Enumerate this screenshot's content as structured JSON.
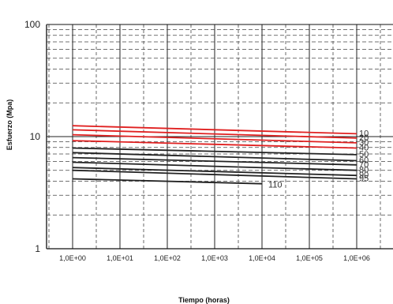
{
  "chart_data": {
    "type": "line",
    "title": "",
    "xlabel": "Tiempo (horas)",
    "ylabel": "Esfuerzo (Mpa)",
    "x_scale": "log",
    "y_scale": "log",
    "xlim": [
      0.1,
      3000000
    ],
    "ylim": [
      1,
      100
    ],
    "x_ticks": [
      1,
      10,
      100,
      1000,
      10000,
      100000,
      1000000
    ],
    "x_tick_labels": [
      "1,0E+00",
      "1,0E+01",
      "1,0E+02",
      "1,0E+03",
      "1,0E+04",
      "1,0E+05",
      "1,0E+06"
    ],
    "y_ticks": [
      1,
      10,
      100
    ],
    "y_tick_labels": [
      "1",
      "10",
      "100"
    ],
    "grid": true,
    "series": [
      {
        "name": "10",
        "color": "#e02020",
        "x": [
          1,
          1000000
        ],
        "y": [
          12.5,
          10.6
        ]
      },
      {
        "name": "20",
        "color": "#e02020",
        "x": [
          1,
          1000000
        ],
        "y": [
          11.5,
          9.7
        ]
      },
      {
        "name": "30",
        "color": "#e02020",
        "x": [
          1,
          1000000
        ],
        "y": [
          10.4,
          8.8
        ]
      },
      {
        "name": "40",
        "color": "#e02020",
        "x": [
          1,
          1000000
        ],
        "y": [
          9.2,
          7.9
        ]
      },
      {
        "name": "50",
        "color": "#222222",
        "x": [
          1,
          1000000
        ],
        "y": [
          7.9,
          6.9
        ]
      },
      {
        "name": "60",
        "color": "#222222",
        "x": [
          1,
          1000000
        ],
        "y": [
          7.2,
          6.1
        ]
      },
      {
        "name": "70",
        "color": "#222222",
        "x": [
          1,
          1000000
        ],
        "y": [
          6.5,
          5.6
        ]
      },
      {
        "name": "80",
        "color": "#222222",
        "x": [
          1,
          1000000
        ],
        "y": [
          5.9,
          5.0
        ]
      },
      {
        "name": "90",
        "color": "#222222",
        "x": [
          1,
          1000000
        ],
        "y": [
          5.3,
          4.5
        ]
      },
      {
        "name": "95",
        "color": "#222222",
        "x": [
          1,
          1000000
        ],
        "y": [
          5.0,
          4.2
        ]
      },
      {
        "name": "110",
        "color": "#222222",
        "x": [
          1,
          10000
        ],
        "y": [
          4.2,
          3.8
        ]
      }
    ]
  }
}
